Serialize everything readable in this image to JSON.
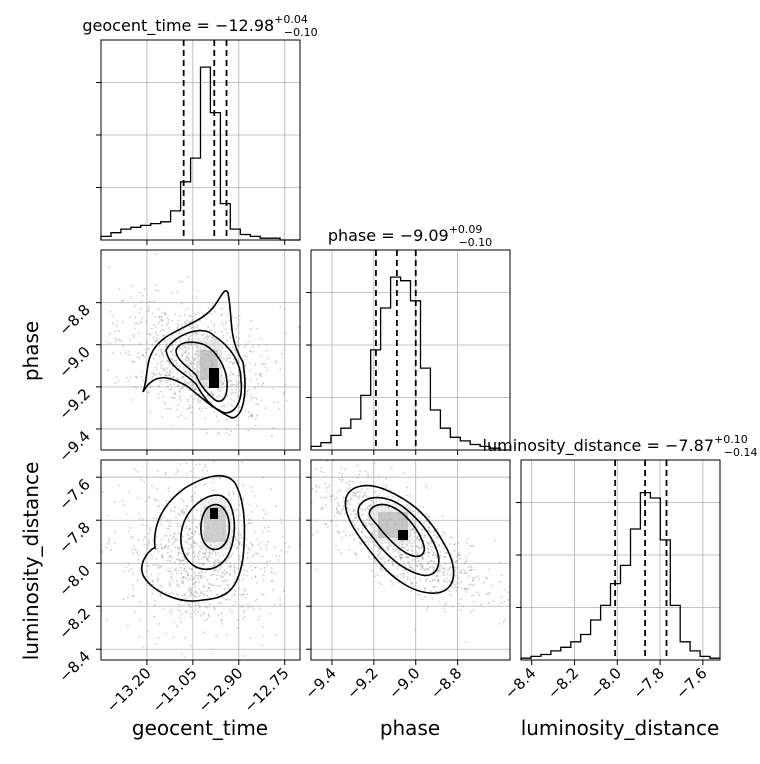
{
  "chart_data": {
    "type": "corner",
    "parameters": [
      {
        "name": "geocent_time",
        "median": -12.98,
        "plus": "+0.04",
        "minus": "−0.10",
        "title_main": "geocent_time = −12.98"
      },
      {
        "name": "phase",
        "median": -9.09,
        "plus": "+0.09",
        "minus": "−0.10",
        "title_main": "phase = −9.09"
      },
      {
        "name": "luminosity_distance",
        "median": -7.87,
        "plus": "+0.10",
        "minus": "−0.14",
        "title_main": "luminosity_distance = −7.87"
      }
    ],
    "axis_labels": {
      "geocent_time": "geocent_time",
      "phase": "phase",
      "luminosity_distance": "luminosity_distance"
    },
    "ranges": {
      "geocent_time": [
        -13.35,
        -12.7
      ],
      "phase": [
        -9.5,
        -8.55
      ],
      "luminosity_distance": [
        -8.45,
        -7.52
      ]
    },
    "ticks": {
      "geocent_time": [
        {
          "v": -13.2,
          "t": "−13.20"
        },
        {
          "v": -13.05,
          "t": "−13.05"
        },
        {
          "v": -12.9,
          "t": "−12.90"
        },
        {
          "v": -12.75,
          "t": "−12.75"
        }
      ],
      "phase": [
        {
          "v": -9.4,
          "t": "−9.4"
        },
        {
          "v": -9.2,
          "t": "−9.2"
        },
        {
          "v": -9.0,
          "t": "−9.0"
        },
        {
          "v": -8.8,
          "t": "−8.8"
        }
      ],
      "luminosity_distance": [
        {
          "v": -8.4,
          "t": "−8.4"
        },
        {
          "v": -8.2,
          "t": "−8.2"
        },
        {
          "v": -8.0,
          "t": "−8.0"
        },
        {
          "v": -7.8,
          "t": "−7.8"
        },
        {
          "v": -7.6,
          "t": "−7.6"
        }
      ]
    },
    "quantiles": {
      "geocent_time": [
        -13.08,
        -12.98,
        -12.94
      ],
      "phase": [
        -9.19,
        -9.09,
        -9.0
      ],
      "luminosity_distance": [
        -8.01,
        -7.87,
        -7.77
      ]
    },
    "histograms": {
      "geocent_time": {
        "start": -13.35,
        "step": 0.0325,
        "counts": [
          0.02,
          0.04,
          0.06,
          0.07,
          0.08,
          0.09,
          0.1,
          0.16,
          0.32,
          0.45,
          0.95,
          0.7,
          0.2,
          0.06,
          0.03,
          0.02,
          0.01,
          0.01,
          0.0,
          0.0
        ]
      },
      "phase": {
        "start": -9.5,
        "step": 0.0475,
        "counts": [
          0.02,
          0.04,
          0.08,
          0.12,
          0.17,
          0.3,
          0.55,
          0.78,
          0.95,
          0.93,
          0.82,
          0.45,
          0.22,
          0.12,
          0.07,
          0.05,
          0.03,
          0.02,
          0.01,
          0.0
        ]
      },
      "luminosity_distance": {
        "start": -8.45,
        "step": 0.0465,
        "counts": [
          0.01,
          0.02,
          0.03,
          0.05,
          0.07,
          0.1,
          0.14,
          0.22,
          0.3,
          0.42,
          0.52,
          0.72,
          0.92,
          0.89,
          0.66,
          0.3,
          0.1,
          0.05,
          0.02,
          0.01
        ]
      }
    },
    "hist_ylim": 1.0,
    "contour_levels": 3,
    "grid": true
  }
}
